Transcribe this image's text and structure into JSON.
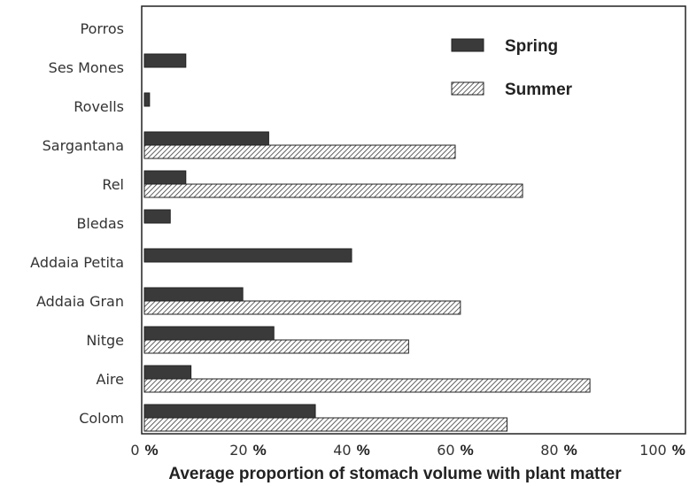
{
  "chart_data": {
    "type": "bar",
    "orientation": "horizontal",
    "categories": [
      "Porros",
      "Ses Mones",
      "Rovells",
      "Sargantana",
      "Rel",
      "Bledas",
      "Addaia Petita",
      "Addaia Gran",
      "Nitge",
      "Aire",
      "Colom"
    ],
    "series": [
      {
        "name": "Spring",
        "values": [
          0,
          8,
          1,
          24,
          8,
          5,
          40,
          19,
          25,
          9,
          33
        ],
        "color": "#3a3a3a",
        "pattern": "solid"
      },
      {
        "name": "Summer",
        "values": [
          0,
          0,
          0,
          60,
          73,
          0,
          0,
          61,
          51,
          86,
          70
        ],
        "color": "#3a3a3a",
        "pattern": "hatched"
      }
    ],
    "xlim": [
      0,
      100
    ],
    "x_ticks": [
      {
        "num": "0",
        "pct": "%"
      },
      {
        "num": "20",
        "pct": "%"
      },
      {
        "num": "40",
        "pct": "%"
      },
      {
        "num": "60",
        "pct": "%"
      },
      {
        "num": "80",
        "pct": "%"
      },
      {
        "num": "100",
        "pct": "%"
      }
    ],
    "xlabel": "Average proportion of stomach volume with plant matter",
    "ylabel": "",
    "title": "",
    "legend_position": "top-right",
    "grid": false
  }
}
